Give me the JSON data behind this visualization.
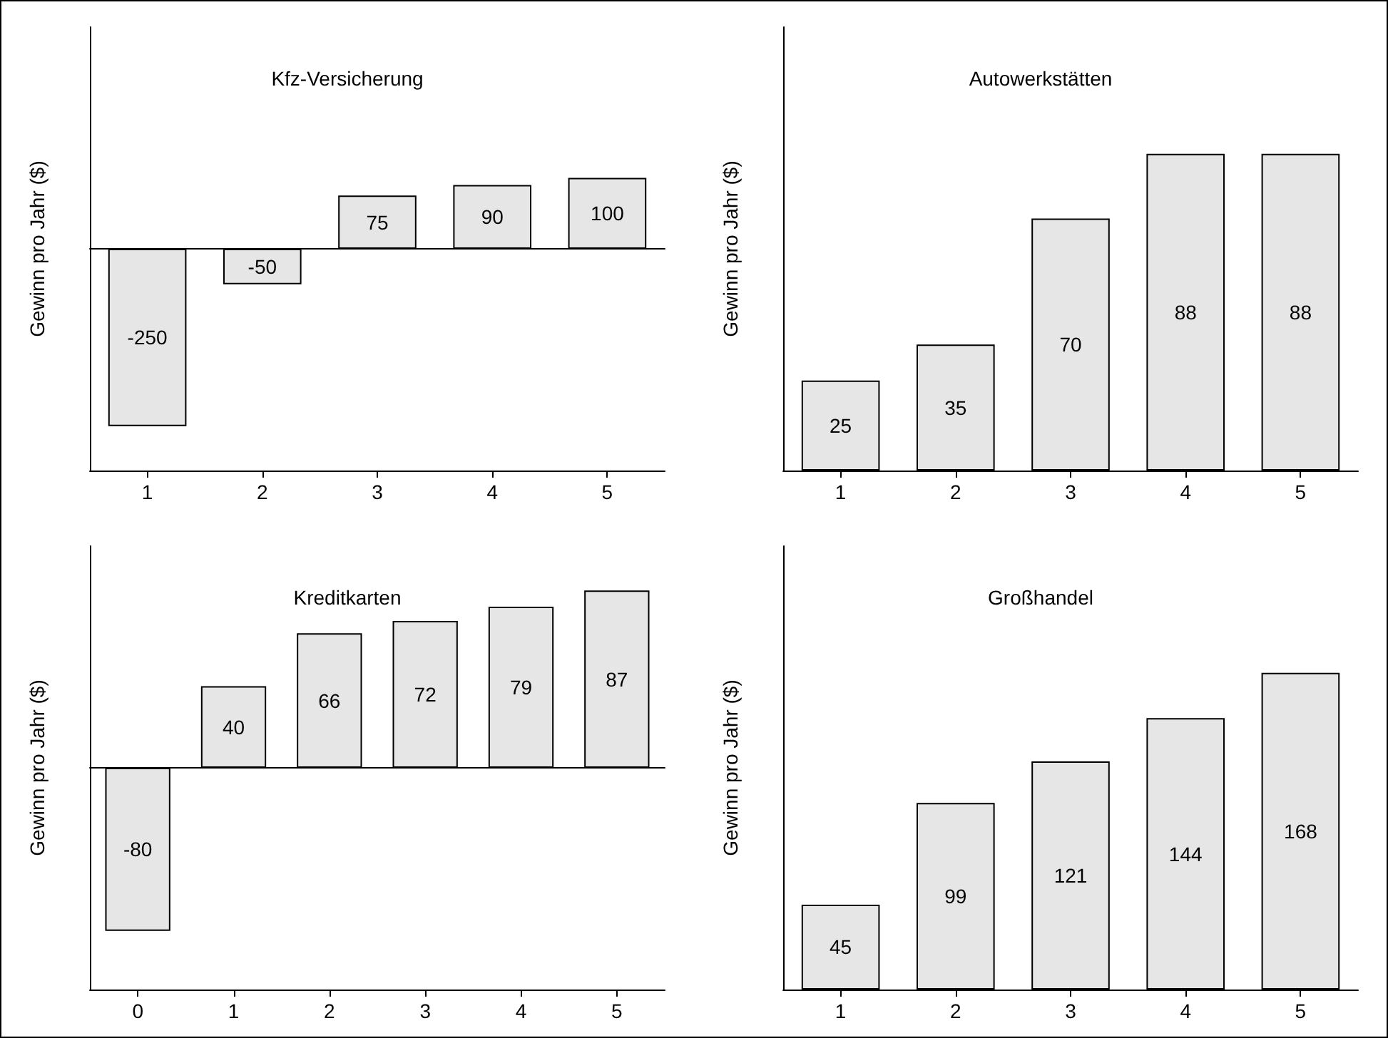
{
  "chart_data": [
    {
      "type": "bar",
      "title": "Kfz-Versicherung",
      "ylabel": "Gewinn pro Jahr ($)",
      "categories": [
        "1",
        "2",
        "3",
        "4",
        "5"
      ],
      "values": [
        -250,
        -50,
        75,
        90,
        100
      ],
      "color": "#e6e6e6",
      "data_labels": true,
      "tick_labels": "x"
    },
    {
      "type": "bar",
      "title": "Autowerkstätten",
      "ylabel": "Gewinn pro Jahr ($)",
      "categories": [
        "1",
        "2",
        "3",
        "4",
        "5"
      ],
      "values": [
        25,
        35,
        70,
        88,
        88
      ],
      "color": "#e6e6e6",
      "data_labels": true,
      "tick_labels": "x"
    },
    {
      "type": "bar",
      "title": "Kreditkarten",
      "ylabel": "Gewinn pro Jahr ($)",
      "categories": [
        "0",
        "1",
        "2",
        "3",
        "4",
        "5"
      ],
      "values": [
        -80,
        40,
        66,
        72,
        79,
        87
      ],
      "color": "#e6e6e6",
      "data_labels": true,
      "tick_labels": "x"
    },
    {
      "type": "bar",
      "title": "Großhandel",
      "ylabel": "Gewinn pro Jahr ($)",
      "categories": [
        "1",
        "2",
        "3",
        "4",
        "5"
      ],
      "values": [
        45,
        99,
        121,
        144,
        168
      ],
      "color": "#e6e6e6",
      "data_labels": true,
      "tick_labels": "x"
    }
  ]
}
